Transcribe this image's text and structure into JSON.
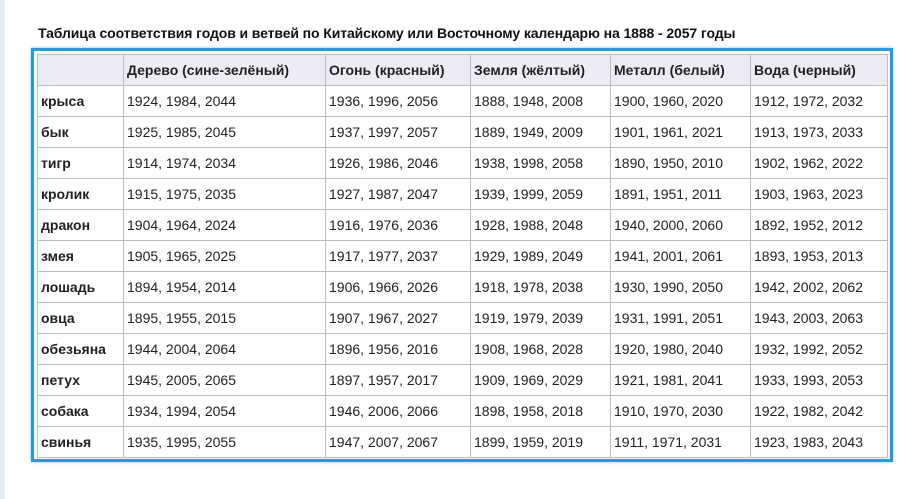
{
  "title": "Таблица соответствия годов и ветвей по Китайскому или Восточному календарю на 1888 - 2057 годы",
  "columns": [
    "",
    "Дерево (сине-зелёный)",
    "Огонь (красный)",
    "Земля (жёлтый)",
    "Металл (белый)",
    "Вода (черный)"
  ],
  "rows": [
    {
      "label": "крыса",
      "cells": [
        "1924, 1984, 2044",
        "1936, 1996, 2056",
        "1888, 1948, 2008",
        "1900, 1960, 2020",
        "1912, 1972, 2032"
      ]
    },
    {
      "label": "бык",
      "cells": [
        "1925, 1985, 2045",
        "1937, 1997, 2057",
        "1889, 1949, 2009",
        "1901, 1961, 2021",
        "1913, 1973, 2033"
      ]
    },
    {
      "label": "тигр",
      "cells": [
        "1914, 1974, 2034",
        "1926, 1986, 2046",
        "1938, 1998, 2058",
        "1890, 1950, 2010",
        "1902, 1962, 2022"
      ]
    },
    {
      "label": "кролик",
      "cells": [
        "1915, 1975, 2035",
        "1927, 1987, 2047",
        "1939, 1999, 2059",
        "1891, 1951, 2011",
        "1903, 1963, 2023"
      ]
    },
    {
      "label": "дракон",
      "cells": [
        "1904, 1964, 2024",
        "1916, 1976, 2036",
        "1928, 1988, 2048",
        "1940, 2000, 2060",
        "1892, 1952, 2012"
      ]
    },
    {
      "label": "змея",
      "cells": [
        "1905, 1965, 2025",
        "1917, 1977, 2037",
        "1929, 1989, 2049",
        "1941, 2001, 2061",
        "1893, 1953, 2013"
      ]
    },
    {
      "label": "лошадь",
      "cells": [
        "1894, 1954, 2014",
        "1906, 1966, 2026",
        "1918, 1978, 2038",
        "1930, 1990, 2050",
        "1942, 2002, 2062"
      ]
    },
    {
      "label": "овца",
      "cells": [
        "1895, 1955, 2015",
        "1907, 1967, 2027",
        "1919, 1979, 2039",
        "1931, 1991, 2051",
        "1943, 2003, 2063"
      ]
    },
    {
      "label": "обезьяна",
      "cells": [
        "1944, 2004, 2064",
        "1896, 1956, 2016",
        "1908, 1968, 2028",
        "1920, 1980, 2040",
        "1932, 1992, 2052"
      ]
    },
    {
      "label": "петух",
      "cells": [
        "1945, 2005, 2065",
        "1897, 1957, 2017",
        "1909, 1969, 2029",
        "1921, 1981, 2041",
        "1933, 1993, 2053"
      ]
    },
    {
      "label": "собака",
      "cells": [
        "1934, 1994, 2054",
        "1946, 2006, 2066",
        "1898, 1958, 2018",
        "1910, 1970, 2030",
        "1922, 1982, 2042"
      ]
    },
    {
      "label": "свинья",
      "cells": [
        "1935, 1995, 2055",
        "1947, 2007, 2067",
        "1899, 1959, 2019",
        "1911, 1971, 2031",
        "1923, 1983, 2043"
      ]
    }
  ],
  "colors": {
    "frame": "#2a9ad6",
    "header_bg": "#ececf4"
  }
}
